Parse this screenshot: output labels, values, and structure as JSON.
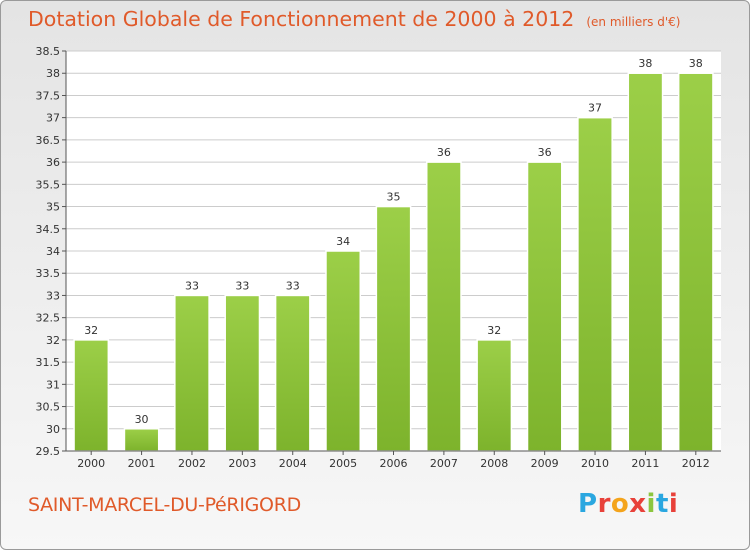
{
  "header": {
    "title": "Dotation Globale de Fonctionnement de 2000 à 2012",
    "unit": "(en milliers d'€)"
  },
  "footer": {
    "commune": "SAINT-MARCEL-DU-PéRIGORD",
    "logo_letters": [
      "P",
      "r",
      "o",
      "x",
      "i",
      "t",
      "i"
    ],
    "logo_colors": [
      "#2aa7e0",
      "#e8413a",
      "#f4a41c",
      "#e8413a",
      "#8cc63f",
      "#2aa7e0",
      "#e8413a"
    ]
  },
  "chart_data": {
    "type": "bar",
    "title": "Dotation Globale de Fonctionnement de 2000 à 2012",
    "xlabel": "",
    "ylabel": "",
    "categories": [
      "2000",
      "2001",
      "2002",
      "2003",
      "2004",
      "2005",
      "2006",
      "2007",
      "2008",
      "2009",
      "2010",
      "2011",
      "2012"
    ],
    "values": [
      32,
      30,
      33,
      33,
      33,
      34,
      35,
      36,
      32,
      36,
      37,
      38,
      38
    ],
    "value_labels": [
      "32",
      "30",
      "33",
      "33",
      "33",
      "34",
      "35",
      "36",
      "32",
      "36",
      "37",
      "38",
      "38"
    ],
    "ylim": [
      29.5,
      38.5
    ],
    "yticks": [
      29.5,
      30,
      30.5,
      31,
      31.5,
      32,
      32.5,
      33,
      33.5,
      34,
      34.5,
      35,
      35.5,
      36,
      36.5,
      37,
      37.5,
      38,
      38.5
    ],
    "grid": true,
    "bar_color": "#7db32c",
    "bar_color_light": "#9ccf48",
    "grid_color": "#cccccc"
  }
}
